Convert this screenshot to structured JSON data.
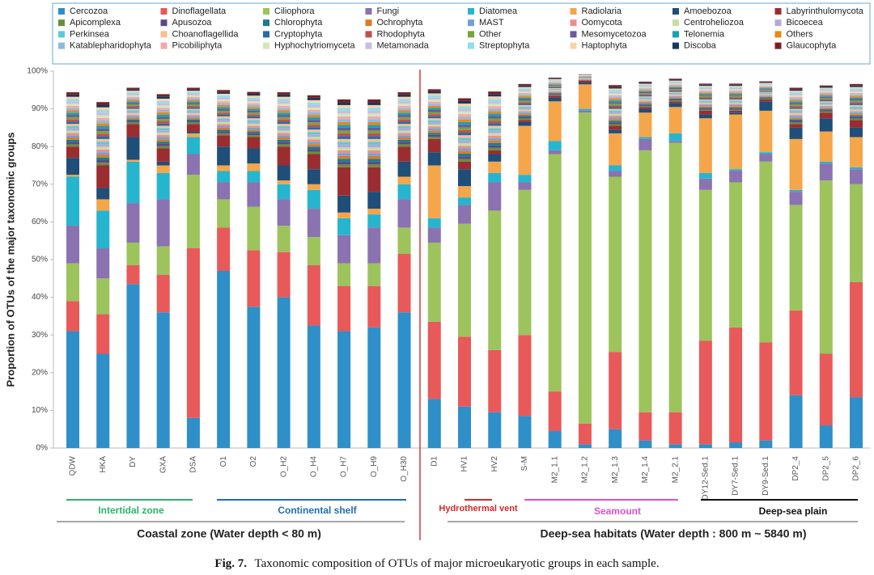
{
  "chart_data": {
    "type": "bar",
    "stacked": true,
    "y_label": "Proportion of OTUs of the major taxonomic groups",
    "categories": [
      "QDW",
      "HKA",
      "DY",
      "GXA",
      "DSA",
      "O1",
      "O2",
      "O_H2",
      "O_H4",
      "O_H7",
      "O_H9",
      "O_H30",
      "D1",
      "HV1",
      "HV2",
      "S-M",
      "M2_1.1",
      "M2_1.2",
      "M2_1.3",
      "M2_1.4",
      "M2_2.1",
      "DY12-Sed.1",
      "DY7-Sed.1",
      "DY9-Sed.1",
      "DP2_4",
      "DP2_5",
      "DP2_6"
    ],
    "ylim": [
      0,
      100
    ],
    "yticks": [
      {
        "value": 0,
        "label": "0%"
      },
      {
        "value": 10,
        "label": "10%"
      },
      {
        "value": 20,
        "label": "20%"
      },
      {
        "value": 30,
        "label": "30%"
      },
      {
        "value": 40,
        "label": "40%"
      },
      {
        "value": 50,
        "label": "50%"
      },
      {
        "value": 60,
        "label": "60%"
      },
      {
        "value": 70,
        "label": "70%"
      },
      {
        "value": 80,
        "label": "80%"
      },
      {
        "value": 90,
        "label": "90%"
      },
      {
        "value": 100,
        "label": "100%"
      }
    ],
    "grid": false,
    "legend_position": "top",
    "series": [
      {
        "name": "Cercozoa",
        "color": "#2e8fc9",
        "values": [
          31,
          25,
          43.5,
          36,
          8,
          47,
          37.5,
          40,
          32.5,
          31,
          32,
          36,
          13,
          11,
          9.5,
          8.5,
          4.5,
          1,
          5,
          2,
          1,
          1,
          1.5,
          2,
          14,
          6,
          13.5
        ]
      },
      {
        "name": "Dinoflagellata",
        "color": "#e8595a",
        "values": [
          8,
          10.5,
          5,
          10,
          45,
          11.5,
          15,
          12,
          16,
          12,
          11,
          15.5,
          20.5,
          18.5,
          16.5,
          21.5,
          10.5,
          5.5,
          20.5,
          7.5,
          8.5,
          27.5,
          30.5,
          26,
          22.5,
          19,
          30.5
        ]
      },
      {
        "name": "Ciliophora",
        "color": "#9dc35c",
        "values": [
          10,
          9.5,
          6,
          7.5,
          19.5,
          7.5,
          11.5,
          7,
          7.5,
          6,
          6,
          7,
          21,
          30,
          37,
          38.5,
          63,
          82.5,
          46.5,
          69.5,
          71.5,
          40,
          38.5,
          48,
          28,
          46,
          26
        ]
      },
      {
        "name": "Fungi",
        "color": "#8b72b0",
        "values": [
          10,
          8,
          10.5,
          12.5,
          5.5,
          4.5,
          6.5,
          7,
          7.5,
          7.5,
          9.5,
          7.5,
          4,
          5,
          7.5,
          2,
          1,
          0.5,
          1.5,
          3,
          0.5,
          3,
          3,
          2,
          3.5,
          4.5,
          4
        ]
      },
      {
        "name": "Diatomea",
        "color": "#26b5cf",
        "values": [
          13,
          10,
          11,
          7,
          4.5,
          3,
          3,
          4,
          5,
          4.5,
          3.5,
          4,
          2.5,
          2,
          2.5,
          2,
          2.5,
          0.5,
          1.5,
          0.5,
          2,
          1.5,
          0.5,
          0.5,
          0.5,
          0.5,
          0.5
        ]
      },
      {
        "name": "Radiolaria",
        "color": "#f5a54a",
        "values": [
          0.5,
          3,
          0.5,
          2,
          1,
          1.5,
          2,
          1,
          1.5,
          1.5,
          1.5,
          2,
          14,
          3,
          3,
          13,
          10.5,
          6.5,
          8.5,
          6.5,
          7,
          14.5,
          14.5,
          11,
          13.5,
          8,
          8
        ]
      },
      {
        "name": "Amoebozoa",
        "color": "#1f4e79",
        "values": [
          4.5,
          3,
          6,
          1,
          0.5,
          5,
          4,
          4,
          4,
          4.5,
          4.5,
          4,
          3.5,
          4.5,
          2,
          1,
          1,
          0.5,
          1,
          1,
          1,
          1,
          0.5,
          2.5,
          3,
          3.5,
          2.5
        ]
      },
      {
        "name": "Labyrinthulomycota",
        "color": "#9b2d30",
        "values": [
          3,
          6,
          3.5,
          3.5,
          2,
          3,
          3,
          5,
          4,
          7.5,
          6.5,
          4,
          3.5,
          2,
          1,
          0.5,
          0.5,
          0.5,
          1,
          0.5,
          0.5,
          1,
          0.5,
          0.5,
          1,
          1.5,
          2
        ]
      },
      {
        "name": "Apicomplexa",
        "color": "#6a8e3a",
        "values": [
          0.6,
          0.7,
          0.4,
          0.6,
          0.4,
          0.5,
          0.5,
          0.6,
          0.65,
          0.75,
          0.75,
          0.6,
          0.55,
          0.7,
          0.65,
          0.4,
          0.2,
          0.07,
          0.45,
          0.28,
          0.25,
          0.3,
          0.3,
          0.2,
          0.4,
          0.3,
          0.4
        ]
      },
      {
        "name": "Apusozoa",
        "color": "#5b4a86",
        "values": [
          0.6,
          0.7,
          0.4,
          0.6,
          0.4,
          0.5,
          0.5,
          0.6,
          0.65,
          0.75,
          0.75,
          0.6,
          0.55,
          0.7,
          0.65,
          0.4,
          0.2,
          0.07,
          0.45,
          0.28,
          0.25,
          0.3,
          0.3,
          0.2,
          0.4,
          0.3,
          0.4
        ]
      },
      {
        "name": "Chlorophyta",
        "color": "#1b7a95",
        "values": [
          0.6,
          0.7,
          0.4,
          0.6,
          0.4,
          0.5,
          0.5,
          0.6,
          0.65,
          0.75,
          0.75,
          0.6,
          0.55,
          0.7,
          0.65,
          0.4,
          0.2,
          0.07,
          0.45,
          0.28,
          0.25,
          0.3,
          0.3,
          0.2,
          0.4,
          0.3,
          0.4
        ]
      },
      {
        "name": "Ochrophyta",
        "color": "#e07b20",
        "values": [
          0.6,
          0.7,
          0.4,
          0.6,
          0.4,
          0.5,
          0.5,
          0.6,
          0.65,
          0.75,
          0.75,
          0.6,
          0.55,
          0.7,
          0.65,
          0.4,
          0.2,
          0.07,
          0.45,
          0.28,
          0.25,
          0.3,
          0.3,
          0.2,
          0.4,
          0.3,
          0.4
        ]
      },
      {
        "name": "MAST",
        "color": "#6fa3d6",
        "values": [
          0.6,
          0.7,
          0.4,
          0.6,
          0.4,
          0.5,
          0.5,
          0.6,
          0.65,
          0.75,
          0.75,
          0.6,
          0.55,
          0.7,
          0.65,
          0.4,
          0.2,
          0.07,
          0.45,
          0.28,
          0.25,
          0.3,
          0.3,
          0.2,
          0.4,
          0.3,
          0.4
        ]
      },
      {
        "name": "Oomycota",
        "color": "#f08c8c",
        "values": [
          0.6,
          0.7,
          0.4,
          0.6,
          0.4,
          0.5,
          0.5,
          0.6,
          0.65,
          0.75,
          0.75,
          0.6,
          0.55,
          0.7,
          0.65,
          0.4,
          0.2,
          0.07,
          0.45,
          0.28,
          0.25,
          0.3,
          0.3,
          0.2,
          0.4,
          0.3,
          0.4
        ]
      },
      {
        "name": "Centroheliozoa",
        "color": "#c6dfa0",
        "values": [
          0.6,
          0.7,
          0.4,
          0.6,
          0.4,
          0.5,
          0.5,
          0.6,
          0.65,
          0.75,
          0.75,
          0.6,
          0.55,
          0.7,
          0.65,
          0.4,
          0.2,
          0.07,
          0.45,
          0.28,
          0.25,
          0.3,
          0.3,
          0.2,
          0.4,
          0.3,
          0.4
        ]
      },
      {
        "name": "Bicoecea",
        "color": "#b7a8d6",
        "values": [
          0.6,
          0.7,
          0.4,
          0.6,
          0.4,
          0.5,
          0.5,
          0.6,
          0.65,
          0.75,
          0.75,
          0.6,
          0.55,
          0.7,
          0.65,
          0.4,
          0.2,
          0.07,
          0.45,
          0.28,
          0.25,
          0.3,
          0.3,
          0.2,
          0.4,
          0.3,
          0.4
        ]
      },
      {
        "name": "Perkinsea",
        "color": "#5cc9d9",
        "values": [
          0.6,
          0.7,
          0.4,
          0.6,
          0.4,
          0.5,
          0.5,
          0.6,
          0.65,
          0.75,
          0.75,
          0.6,
          0.55,
          0.7,
          0.65,
          0.4,
          0.2,
          0.07,
          0.45,
          0.28,
          0.25,
          0.3,
          0.3,
          0.2,
          0.4,
          0.3,
          0.4
        ]
      },
      {
        "name": "Choanoflagellida",
        "color": "#f9c08e",
        "values": [
          0.6,
          0.7,
          0.4,
          0.6,
          0.4,
          0.5,
          0.5,
          0.6,
          0.65,
          0.75,
          0.75,
          0.6,
          0.55,
          0.7,
          0.65,
          0.4,
          0.2,
          0.07,
          0.45,
          0.28,
          0.25,
          0.3,
          0.3,
          0.2,
          0.4,
          0.3,
          0.4
        ]
      },
      {
        "name": "Cryptophyta",
        "color": "#2a6aa8",
        "values": [
          0.6,
          0.7,
          0.4,
          0.6,
          0.4,
          0.5,
          0.5,
          0.6,
          0.65,
          0.75,
          0.75,
          0.6,
          0.55,
          0.7,
          0.65,
          0.4,
          0.2,
          0.07,
          0.45,
          0.28,
          0.25,
          0.3,
          0.3,
          0.2,
          0.4,
          0.3,
          0.4
        ]
      },
      {
        "name": "Rhodophyta",
        "color": "#c0504d",
        "values": [
          0.6,
          0.7,
          0.4,
          0.6,
          0.4,
          0.5,
          0.5,
          0.6,
          0.65,
          0.75,
          0.75,
          0.6,
          0.55,
          0.7,
          0.65,
          0.4,
          0.2,
          0.07,
          0.45,
          0.28,
          0.25,
          0.3,
          0.3,
          0.2,
          0.4,
          0.3,
          0.4
        ]
      },
      {
        "name": "Other",
        "color": "#7aa33c",
        "values": [
          0.6,
          0.7,
          0.4,
          0.6,
          0.4,
          0.5,
          0.5,
          0.6,
          0.65,
          0.75,
          0.75,
          0.6,
          0.55,
          0.7,
          0.65,
          0.4,
          0.2,
          0.07,
          0.45,
          0.28,
          0.25,
          0.3,
          0.3,
          0.2,
          0.4,
          0.3,
          0.4
        ]
      },
      {
        "name": "Mesomycetozoa",
        "color": "#6a5a9a",
        "values": [
          0.6,
          0.7,
          0.4,
          0.6,
          0.4,
          0.5,
          0.5,
          0.6,
          0.65,
          0.75,
          0.75,
          0.6,
          0.55,
          0.7,
          0.65,
          0.4,
          0.2,
          0.07,
          0.45,
          0.28,
          0.25,
          0.3,
          0.3,
          0.2,
          0.4,
          0.3,
          0.4
        ]
      },
      {
        "name": "Telonemia",
        "color": "#1aa0b8",
        "values": [
          0.6,
          0.7,
          0.4,
          0.6,
          0.4,
          0.5,
          0.5,
          0.6,
          0.65,
          0.75,
          0.75,
          0.6,
          0.55,
          0.7,
          0.65,
          0.4,
          0.2,
          0.07,
          0.45,
          0.28,
          0.25,
          0.3,
          0.3,
          0.2,
          0.4,
          0.3,
          0.4
        ]
      },
      {
        "name": "Others",
        "color": "#e8891a",
        "values": [
          0.6,
          0.7,
          0.4,
          0.6,
          0.4,
          0.5,
          0.5,
          0.6,
          0.65,
          0.75,
          0.75,
          0.6,
          0.55,
          0.7,
          0.65,
          0.4,
          0.2,
          0.07,
          0.45,
          0.28,
          0.25,
          0.3,
          0.3,
          0.2,
          0.4,
          0.3,
          0.4
        ]
      },
      {
        "name": "Katablepharidophyta",
        "color": "#8fb8e0",
        "values": [
          0.6,
          0.7,
          0.4,
          0.6,
          0.4,
          0.5,
          0.5,
          0.6,
          0.65,
          0.75,
          0.75,
          0.6,
          0.55,
          0.7,
          0.65,
          0.4,
          0.2,
          0.07,
          0.45,
          0.28,
          0.25,
          0.3,
          0.3,
          0.2,
          0.4,
          0.3,
          0.4
        ]
      },
      {
        "name": "Picobiliphyta",
        "color": "#f4a8a8",
        "values": [
          0.6,
          0.7,
          0.4,
          0.6,
          0.4,
          0.5,
          0.5,
          0.6,
          0.65,
          0.75,
          0.75,
          0.6,
          0.55,
          0.7,
          0.65,
          0.4,
          0.2,
          0.07,
          0.45,
          0.28,
          0.25,
          0.3,
          0.3,
          0.2,
          0.4,
          0.3,
          0.4
        ]
      },
      {
        "name": "Hyphochytriomyceta",
        "color": "#d5e6b8",
        "values": [
          0.6,
          0.7,
          0.4,
          0.6,
          0.4,
          0.5,
          0.5,
          0.6,
          0.65,
          0.75,
          0.75,
          0.6,
          0.55,
          0.7,
          0.65,
          0.4,
          0.2,
          0.07,
          0.45,
          0.28,
          0.25,
          0.3,
          0.3,
          0.2,
          0.4,
          0.3,
          0.4
        ]
      },
      {
        "name": "Metamonada",
        "color": "#c8bde0",
        "values": [
          0.6,
          0.7,
          0.4,
          0.6,
          0.4,
          0.5,
          0.5,
          0.6,
          0.65,
          0.75,
          0.75,
          0.6,
          0.55,
          0.7,
          0.65,
          0.4,
          0.2,
          0.07,
          0.45,
          0.28,
          0.25,
          0.3,
          0.3,
          0.2,
          0.4,
          0.3,
          0.4
        ]
      },
      {
        "name": "Streptophyta",
        "color": "#8ee0ea",
        "values": [
          0.6,
          0.7,
          0.4,
          0.6,
          0.4,
          0.5,
          0.5,
          0.6,
          0.65,
          0.75,
          0.75,
          0.6,
          0.55,
          0.7,
          0.65,
          0.4,
          0.2,
          0.07,
          0.45,
          0.28,
          0.25,
          0.3,
          0.3,
          0.2,
          0.4,
          0.3,
          0.4
        ]
      },
      {
        "name": "Haptophyta",
        "color": "#fbd3aa",
        "values": [
          0.6,
          0.7,
          0.4,
          0.6,
          0.4,
          0.5,
          0.5,
          0.6,
          0.65,
          0.75,
          0.75,
          0.6,
          0.55,
          0.7,
          0.65,
          0.4,
          0.2,
          0.07,
          0.45,
          0.28,
          0.25,
          0.3,
          0.3,
          0.2,
          0.4,
          0.3,
          0.4
        ]
      },
      {
        "name": "Discoba",
        "color": "#17375e",
        "values": [
          0.6,
          0.7,
          0.4,
          0.6,
          0.4,
          0.5,
          0.5,
          0.6,
          0.65,
          0.75,
          0.75,
          0.6,
          0.55,
          0.7,
          0.65,
          0.4,
          0.2,
          0.07,
          0.45,
          0.28,
          0.25,
          0.3,
          0.3,
          0.2,
          0.4,
          0.3,
          0.4
        ]
      },
      {
        "name": "Glaucophyta",
        "color": "#7b1f22",
        "values": [
          0.6,
          0.7,
          0.4,
          0.6,
          0.4,
          0.5,
          0.5,
          0.6,
          0.65,
          0.75,
          0.75,
          0.6,
          0.55,
          0.7,
          0.65,
          0.4,
          0.2,
          0.07,
          0.45,
          0.28,
          0.25,
          0.3,
          0.3,
          0.2,
          0.4,
          0.3,
          0.4
        ]
      }
    ],
    "subgroups": [
      {
        "label": "Intertidal zone",
        "color": "#2db36b"
      },
      {
        "label": "Continental shelf",
        "color": "#1f6fb2"
      },
      {
        "label": "Hydrothermal vent",
        "color": "#d42a2a"
      },
      {
        "label": "Seamount",
        "color": "#e04fd0"
      },
      {
        "label": "Deep-sea plain",
        "color": "#111111"
      }
    ],
    "groups": [
      {
        "label": "Coastal zone (Water depth < 80 m)"
      },
      {
        "label": "Deep-sea habitats (Water depth : 800 m ~ 5840 m)"
      }
    ],
    "caption": {
      "label": "Fig. 7.",
      "text": "Taxonomic composition of OTUs of major microeukaryotic groups in each sample."
    }
  }
}
